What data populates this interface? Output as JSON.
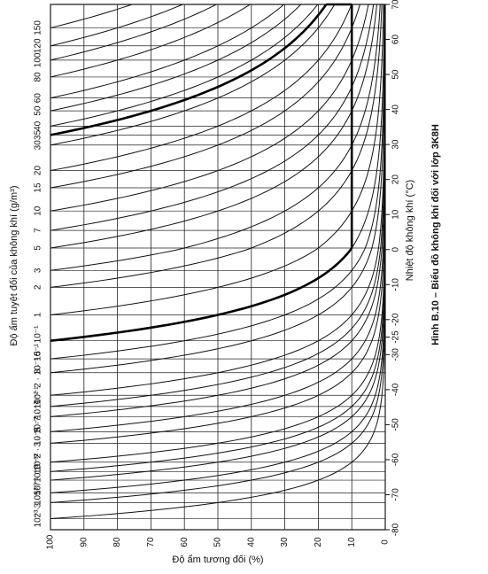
{
  "chart_data": {
    "type": "humidity-chart",
    "x_label": "Độ ẩm tương đối (%)",
    "y_label": "Độ ẩm tuyệt đối của không khí (g/m³)",
    "y2_label": "Nhiệt độ không khí (°C)",
    "caption": "Hình B.10 – Biểu đồ không khí đối với lớp 3K8H",
    "xlim": [
      100,
      0
    ],
    "xticks": [
      100,
      90,
      80,
      70,
      60,
      50,
      40,
      30,
      20,
      10,
      0
    ],
    "y2lim": [
      -80,
      70
    ],
    "y2ticks": [
      -80,
      -70,
      -60,
      -50,
      -40,
      -30,
      -25,
      -20,
      -10,
      0,
      10,
      20,
      30,
      40,
      50,
      60,
      70
    ],
    "curves": {
      "values": [
        150,
        120,
        100,
        80,
        60,
        50,
        40,
        35,
        30,
        20,
        15,
        10,
        7,
        5,
        3,
        2,
        1,
        0.5,
        0.3,
        0.2,
        0.1,
        0.07,
        0.05,
        0.03,
        0.02,
        0.01,
        0.007,
        0.005,
        0.003,
        0.002,
        0.001
      ],
      "value_labels": [
        "150",
        "120",
        "100",
        "80",
        "60",
        "50",
        "40",
        "35",
        "30",
        "20",
        "15",
        "10",
        "7",
        "5",
        "3",
        "2",
        "1",
        "5 · 10⁻¹",
        "3 · 10⁻¹",
        "2 · 10⁻¹",
        "10⁻¹",
        "7 · 10⁻²",
        "5 · 10⁻²",
        "3 · 10⁻²",
        "2 · 10⁻²",
        "10⁻²",
        "7 · 10⁻³",
        "5 · 10⁻³",
        "3 · 10⁻³",
        "2 · 10⁻³",
        "10⁻³"
      ],
      "color": "#111111"
    },
    "boundary": {
      "absolute_humidity": [
        0.5,
        35
      ],
      "relative_humidity": 10,
      "temperature": 70,
      "color": "#000000"
    },
    "grid": true
  }
}
